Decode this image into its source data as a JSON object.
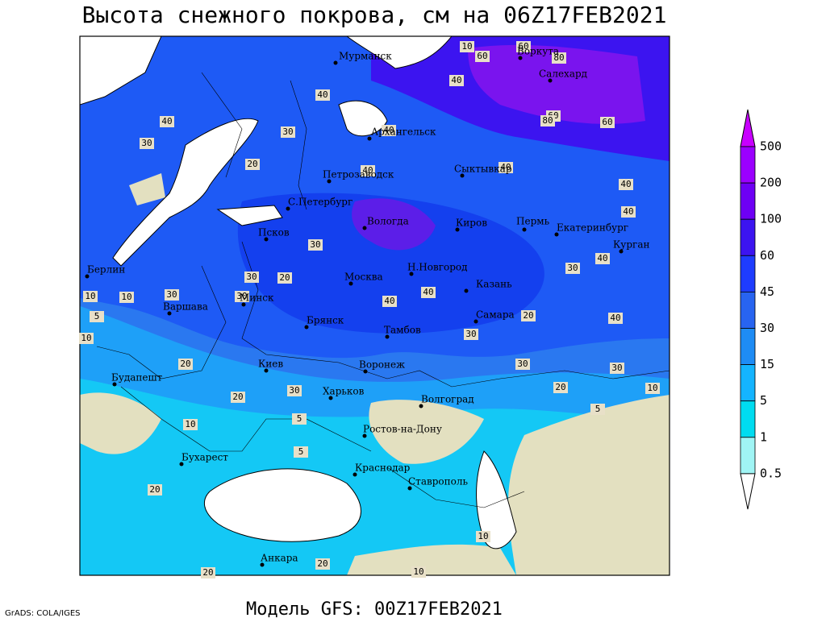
{
  "header": {
    "title": "Высота снежного покрова, см на 06Z17FEB2021"
  },
  "footer": {
    "model": "Модель GFS: 00Z17FEB2021",
    "credit": "GrADS: COLA/IGES"
  },
  "legend": {
    "levels": [
      500,
      200,
      100,
      60,
      45,
      30,
      15,
      5,
      1,
      0.5
    ],
    "colors": [
      "#c800ff",
      "#9b00ff",
      "#6e00f5",
      "#3c14f0",
      "#1e3cff",
      "#2864f0",
      "#1e8cf5",
      "#14b4ff",
      "#00dcf0",
      "#a0f5f5",
      "#ffffff"
    ]
  },
  "cities": [
    "Мурманск",
    "Воркута",
    "Салехард",
    "Архангельск",
    "Петрозаводск",
    "Сыктывкар",
    "С.Петербург",
    "Вологда",
    "Киров",
    "Пермь",
    "Екатеринбург",
    "Курган",
    "Псков",
    "Берлин",
    "Москва",
    "Н.Новгород",
    "Казань",
    "Минск",
    "Варшава",
    "Брянск",
    "Самара",
    "Тамбов",
    "Киев",
    "Воронеж",
    "Будапешт",
    "Харьков",
    "Волгоград",
    "Ростов-на-Дону",
    "Бухарест",
    "Краснодар",
    "Ставрополь",
    "Анкара"
  ],
  "contour_labels": [
    10,
    60,
    80,
    40,
    60,
    60,
    80,
    40,
    40,
    60,
    30,
    40,
    20,
    30,
    40,
    40,
    40,
    40,
    40,
    30,
    20,
    30,
    30,
    30,
    40,
    40,
    30,
    20,
    10,
    10,
    5,
    10,
    30,
    30,
    20,
    30,
    40,
    30,
    20,
    20,
    10,
    5,
    5,
    10,
    5,
    20,
    10,
    20,
    20,
    10
  ]
}
